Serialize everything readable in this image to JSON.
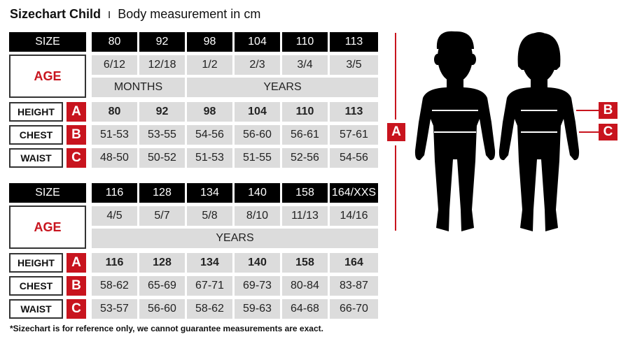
{
  "title": {
    "main": "Sizechart Child",
    "separator": "I",
    "sub": "Body measurement in cm"
  },
  "labels": {
    "size": "SIZE",
    "age": "AGE",
    "height": "HEIGHT",
    "chest": "CHEST",
    "waist": "WAIST",
    "a": "A",
    "b": "B",
    "c": "C"
  },
  "table1": {
    "sizes": [
      "80",
      "92",
      "98",
      "104",
      "110",
      "113"
    ],
    "ages": [
      "6/12",
      "12/18",
      "1/2",
      "2/3",
      "3/4",
      "3/5"
    ],
    "unit_months": "MONTHS",
    "unit_years": "YEARS",
    "height": [
      "80",
      "92",
      "98",
      "104",
      "110",
      "113"
    ],
    "chest": [
      "51-53",
      "53-55",
      "54-56",
      "56-60",
      "56-61",
      "57-61"
    ],
    "waist": [
      "48-50",
      "50-52",
      "51-53",
      "51-55",
      "52-56",
      "54-56"
    ]
  },
  "table2": {
    "sizes": [
      "116",
      "128",
      "134",
      "140",
      "158",
      "164/XXS"
    ],
    "ages": [
      "4/5",
      "5/7",
      "5/8",
      "8/10",
      "11/13",
      "14/16"
    ],
    "unit_years": "YEARS",
    "height": [
      "116",
      "128",
      "134",
      "140",
      "158",
      "164"
    ],
    "chest": [
      "58-62",
      "65-69",
      "67-71",
      "69-73",
      "80-84",
      "83-87"
    ],
    "waist": [
      "53-57",
      "56-60",
      "58-62",
      "59-63",
      "64-68",
      "66-70"
    ]
  },
  "footer": "*Sizechart is for reference only, we cannot guarantee measurements are exact.",
  "colors": {
    "accent": "#c8141e",
    "header": "#000000",
    "cell": "#dcdcdc"
  }
}
